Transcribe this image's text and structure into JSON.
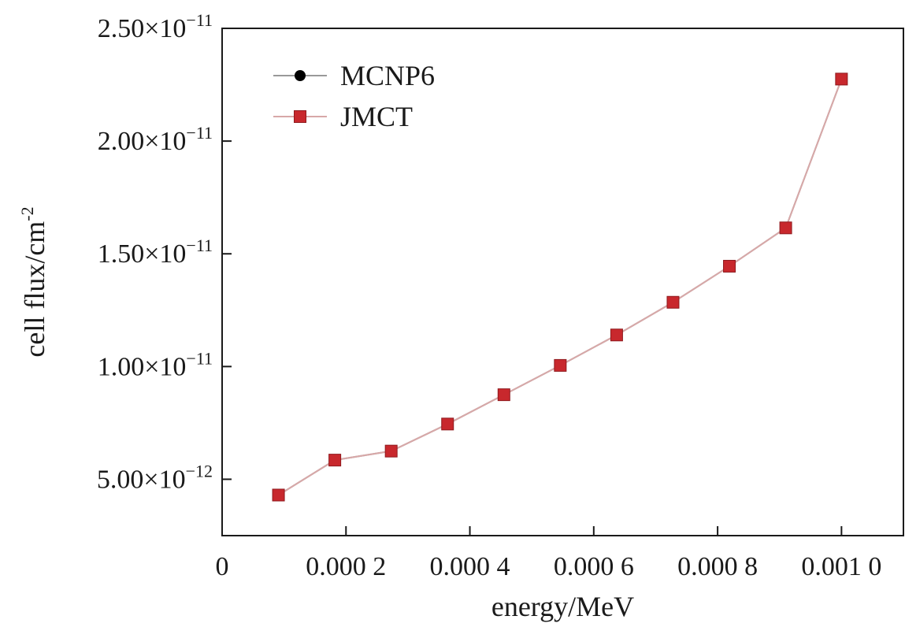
{
  "chart_data": {
    "type": "line",
    "title": "",
    "xlabel": "energy/MeV",
    "ylabel": "cell flux/cm",
    "ylabel_sup": "-2",
    "xlim": [
      0,
      0.0011
    ],
    "ylim": [
      2.5e-12,
      2.5e-11
    ],
    "x_ticks": [
      {
        "value": 0,
        "label": "0"
      },
      {
        "value": 0.0002,
        "label": "0.000 2"
      },
      {
        "value": 0.0004,
        "label": "0.000 4"
      },
      {
        "value": 0.0006,
        "label": "0.000 6"
      },
      {
        "value": 0.0008,
        "label": "0.000 8"
      },
      {
        "value": 0.001,
        "label": "0.001 0"
      }
    ],
    "y_ticks": [
      {
        "value": 5e-12,
        "mantissa": "5.00×10",
        "exponent": "−12"
      },
      {
        "value": 1e-11,
        "mantissa": "1.00×10",
        "exponent": "−11"
      },
      {
        "value": 1.5e-11,
        "mantissa": "1.50×10",
        "exponent": "−11"
      },
      {
        "value": 2e-11,
        "mantissa": "2.00×10",
        "exponent": "−11"
      },
      {
        "value": 2.5e-11,
        "mantissa": "2.50×10",
        "exponent": "−11"
      }
    ],
    "legend_position": "top-left",
    "grid": false,
    "x": [
      9.1e-05,
      0.000182,
      0.000273,
      0.000364,
      0.000455,
      0.000546,
      0.000637,
      0.000728,
      0.000819,
      0.00091,
      0.001
    ],
    "series": [
      {
        "name": "MCNP6",
        "marker": "circle",
        "color": "#000000",
        "line_color": "#999999",
        "values": [
          4.3e-12,
          5.85e-12,
          6.25e-12,
          7.45e-12,
          8.75e-12,
          1.005e-11,
          1.14e-11,
          1.285e-11,
          1.445e-11,
          1.615e-11,
          2.275e-11
        ]
      },
      {
        "name": "JMCT",
        "marker": "square",
        "color": "#c8282d",
        "line_color": "#d8a8a8",
        "values": [
          4.3e-12,
          5.85e-12,
          6.25e-12,
          7.45e-12,
          8.75e-12,
          1.005e-11,
          1.14e-11,
          1.285e-11,
          1.445e-11,
          1.615e-11,
          2.275e-11
        ]
      }
    ]
  }
}
